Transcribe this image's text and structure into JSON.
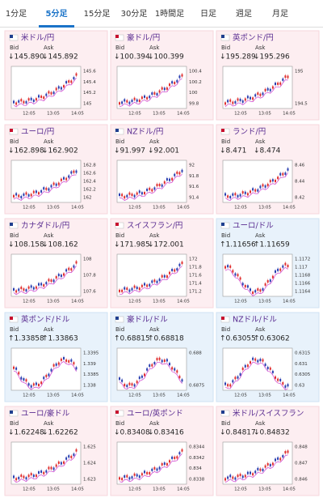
{
  "tabs": [
    "1分足",
    "5分足",
    "15分足",
    "30分足",
    "1時間足",
    "日足",
    "週足",
    "月足"
  ],
  "active_tab": 1,
  "labels": {
    "bid": "Bid",
    "ask": "Ask"
  },
  "x_labels": [
    "12:05",
    "13:05",
    "14:05"
  ],
  "tiles": [
    {
      "name": "米ドル/円",
      "trend": "down",
      "bid": "↓145.890",
      "ask": "↓145.892",
      "yticks": [
        "145.6",
        "145.4",
        "145.2",
        "145"
      ]
    },
    {
      "name": "豪ドル/円",
      "trend": "down",
      "bid": "↓100.394",
      "ask": "↓100.399",
      "yticks": [
        "100.4",
        "100.2",
        "100",
        "99.8"
      ]
    },
    {
      "name": "英ポンド/円",
      "trend": "down",
      "bid": "↓195.289",
      "ask": "↓195.296",
      "yticks": [
        "195",
        "194.5"
      ]
    },
    {
      "name": "ユーロ/円",
      "trend": "down",
      "bid": "↓162.898",
      "ask": "↓162.902",
      "yticks": [
        "162.8",
        "162.6",
        "162.4",
        "162.2",
        "162"
      ]
    },
    {
      "name": "NZドル/円",
      "trend": "down",
      "bid": "↓91.997",
      "ask": "↓92.001",
      "yticks": [
        "92",
        "91.8",
        "91.6",
        "91.4"
      ]
    },
    {
      "name": "ランド/円",
      "trend": "down",
      "bid": "↓8.471",
      "ask": "↓8.474",
      "yticks": [
        "8.46",
        "8.44",
        "8.42"
      ]
    },
    {
      "name": "カナダドル/円",
      "trend": "down",
      "bid": "↓108.158",
      "ask": "↓108.162",
      "yticks": [
        "108",
        "107.8",
        "107.6"
      ]
    },
    {
      "name": "スイスフラン/円",
      "trend": "down",
      "bid": "↓171.985",
      "ask": "↓172.001",
      "yticks": [
        "172",
        "171.8",
        "171.6",
        "171.4",
        "171.2"
      ]
    },
    {
      "name": "ユーロ/ドル",
      "trend": "up",
      "bid": "↑1.11656",
      "ask": "↑1.11659",
      "yticks": [
        "1.1172",
        "1.117",
        "1.1168",
        "1.1166",
        "1.1164"
      ]
    },
    {
      "name": "英ポンド/ドル",
      "trend": "up",
      "bid": "↑1.33858",
      "ask": "↑1.33863",
      "yticks": [
        "1.3395",
        "1.339",
        "1.3385",
        "1.338"
      ]
    },
    {
      "name": "豪ドル/ドル",
      "trend": "up",
      "bid": "↑0.68815",
      "ask": "↑0.68818",
      "yticks": [
        "0.688",
        "0.6875"
      ]
    },
    {
      "name": "NZドル/ドル",
      "trend": "up",
      "bid": "↑0.63055",
      "ask": "↑0.63062",
      "yticks": [
        "0.6315",
        "0.631",
        "0.6305",
        "0.63"
      ]
    },
    {
      "name": "ユーロ/豪ドル",
      "trend": "down",
      "bid": "↓1.62248",
      "ask": "↓1.62262",
      "yticks": [
        "1.625",
        "1.624",
        "1.623"
      ]
    },
    {
      "name": "ユーロ/英ポンド",
      "trend": "down",
      "bid": "↓0.83408",
      "ask": "↓0.83416",
      "yticks": [
        "0.8344",
        "0.8342",
        "0.834",
        "0.8338"
      ]
    },
    {
      "name": "米ドル/スイスフラン",
      "trend": "down",
      "bid": "↓0.84817",
      "ask": "↓0.84832",
      "yticks": [
        "0.848",
        "0.847",
        "0.846"
      ]
    }
  ]
}
